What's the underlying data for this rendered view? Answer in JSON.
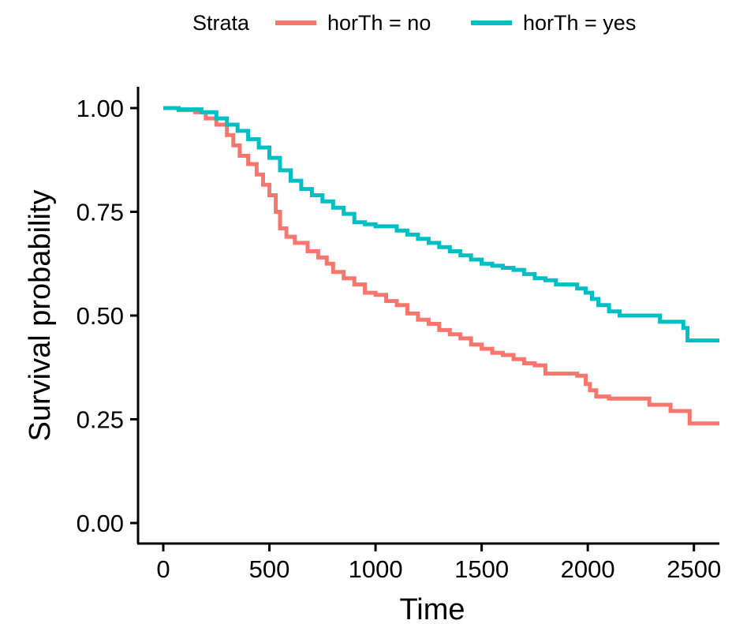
{
  "chart_data": {
    "type": "line",
    "step": true,
    "xlabel": "Time",
    "ylabel": "Survival probability",
    "xlim": [
      0,
      2620
    ],
    "ylim": [
      0,
      1
    ],
    "xticks": [
      "0",
      "500",
      "1000",
      "1500",
      "2000",
      "2500"
    ],
    "yticks": [
      "0.00",
      "0.25",
      "0.50",
      "0.75",
      "1.00"
    ],
    "legend": {
      "title": "Strata",
      "position": "top",
      "entries": [
        "horTh = no",
        "horTh = yes"
      ]
    },
    "series": [
      {
        "name": "horTh = no",
        "color": "#F8766D",
        "x": [
          0,
          72,
          150,
          200,
          250,
          300,
          330,
          360,
          400,
          440,
          470,
          500,
          530,
          550,
          580,
          620,
          680,
          730,
          770,
          800,
          850,
          900,
          950,
          1000,
          1050,
          1100,
          1150,
          1200,
          1250,
          1300,
          1350,
          1400,
          1450,
          1500,
          1550,
          1600,
          1650,
          1700,
          1750,
          1800,
          1850,
          1900,
          1950,
          1990,
          2010,
          2040,
          2080,
          2100,
          2200,
          2270,
          2290,
          2360,
          2390,
          2460,
          2480,
          2620
        ],
        "y": [
          1.0,
          0.995,
          0.99,
          0.975,
          0.96,
          0.935,
          0.91,
          0.885,
          0.865,
          0.84,
          0.815,
          0.79,
          0.75,
          0.71,
          0.69,
          0.675,
          0.655,
          0.64,
          0.625,
          0.605,
          0.59,
          0.575,
          0.555,
          0.55,
          0.535,
          0.525,
          0.505,
          0.49,
          0.48,
          0.465,
          0.455,
          0.445,
          0.43,
          0.42,
          0.41,
          0.405,
          0.395,
          0.385,
          0.38,
          0.36,
          0.36,
          0.36,
          0.355,
          0.335,
          0.32,
          0.305,
          0.305,
          0.3,
          0.3,
          0.3,
          0.285,
          0.285,
          0.27,
          0.27,
          0.24,
          0.24
        ]
      },
      {
        "name": "horTh = yes",
        "color": "#00BFC4",
        "x": [
          0,
          72,
          180,
          250,
          300,
          350,
          400,
          450,
          500,
          550,
          600,
          650,
          700,
          750,
          800,
          850,
          900,
          950,
          1000,
          1100,
          1150,
          1200,
          1250,
          1300,
          1350,
          1400,
          1450,
          1500,
          1550,
          1600,
          1650,
          1700,
          1750,
          1800,
          1850,
          1950,
          1990,
          2020,
          2050,
          2100,
          2150,
          2200,
          2250,
          2300,
          2340,
          2370,
          2450,
          2470,
          2620
        ],
        "y": [
          1.0,
          0.997,
          0.99,
          0.975,
          0.96,
          0.945,
          0.925,
          0.905,
          0.88,
          0.85,
          0.825,
          0.805,
          0.79,
          0.775,
          0.76,
          0.745,
          0.725,
          0.72,
          0.715,
          0.705,
          0.695,
          0.685,
          0.675,
          0.665,
          0.655,
          0.645,
          0.635,
          0.625,
          0.62,
          0.615,
          0.61,
          0.6,
          0.59,
          0.585,
          0.575,
          0.565,
          0.555,
          0.54,
          0.525,
          0.51,
          0.5,
          0.5,
          0.5,
          0.5,
          0.485,
          0.485,
          0.47,
          0.44,
          0.44
        ]
      }
    ]
  }
}
